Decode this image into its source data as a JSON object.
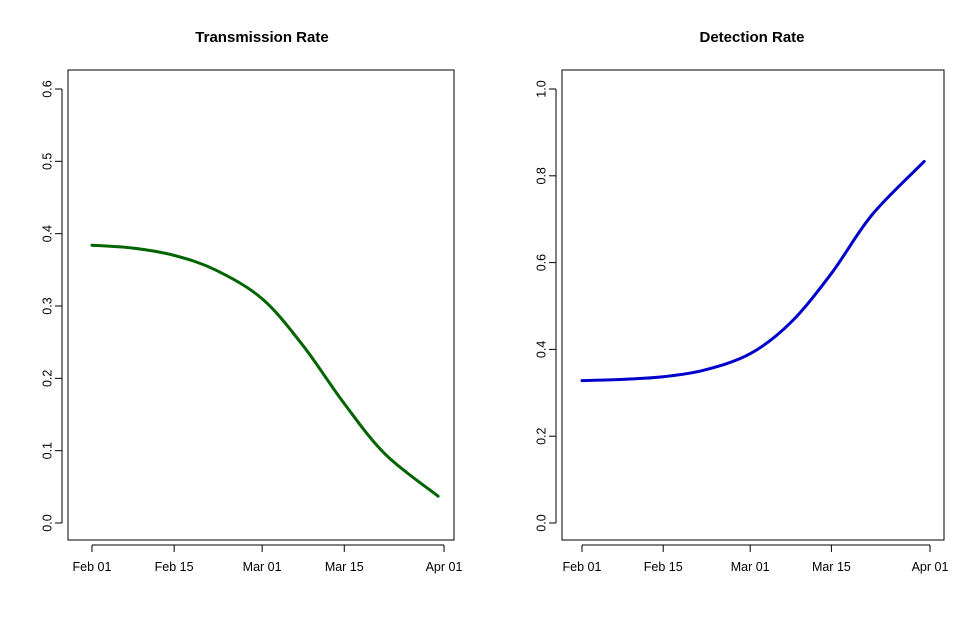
{
  "chart_data": [
    {
      "type": "line",
      "title": "Transmission Rate",
      "xlabel": "",
      "ylabel": "",
      "x_axis": {
        "ticks": [
          "Feb 01",
          "Feb 15",
          "Mar 01",
          "Mar 15",
          "Apr 01"
        ]
      },
      "ylim": [
        0,
        0.6
      ],
      "y_ticks": [
        "0.0",
        "0.1",
        "0.2",
        "0.3",
        "0.4",
        "0.5",
        "0.6"
      ],
      "grid": false,
      "color": "#006400",
      "x": [
        "Feb 01",
        "Feb 08",
        "Feb 15",
        "Feb 22",
        "Mar 01",
        "Mar 08",
        "Mar 15",
        "Mar 22",
        "Mar 31"
      ],
      "values": [
        0.384,
        0.38,
        0.37,
        0.35,
        0.31,
        0.245,
        0.165,
        0.095,
        0.037
      ]
    },
    {
      "type": "line",
      "title": "Detection Rate",
      "xlabel": "",
      "ylabel": "",
      "x_axis": {
        "ticks": [
          "Feb 01",
          "Feb 15",
          "Mar 01",
          "Mar 15",
          "Apr 01"
        ]
      },
      "ylim": [
        0,
        1
      ],
      "y_ticks": [
        "0.0",
        "0.2",
        "0.4",
        "0.6",
        "0.8",
        "1.0"
      ],
      "grid": false,
      "color": "#0000CD",
      "x": [
        "Feb 01",
        "Feb 08",
        "Feb 15",
        "Feb 22",
        "Mar 01",
        "Mar 08",
        "Mar 15",
        "Mar 22",
        "Mar 31"
      ],
      "values": [
        0.328,
        0.331,
        0.337,
        0.352,
        0.39,
        0.462,
        0.575,
        0.71,
        0.833
      ]
    }
  ]
}
